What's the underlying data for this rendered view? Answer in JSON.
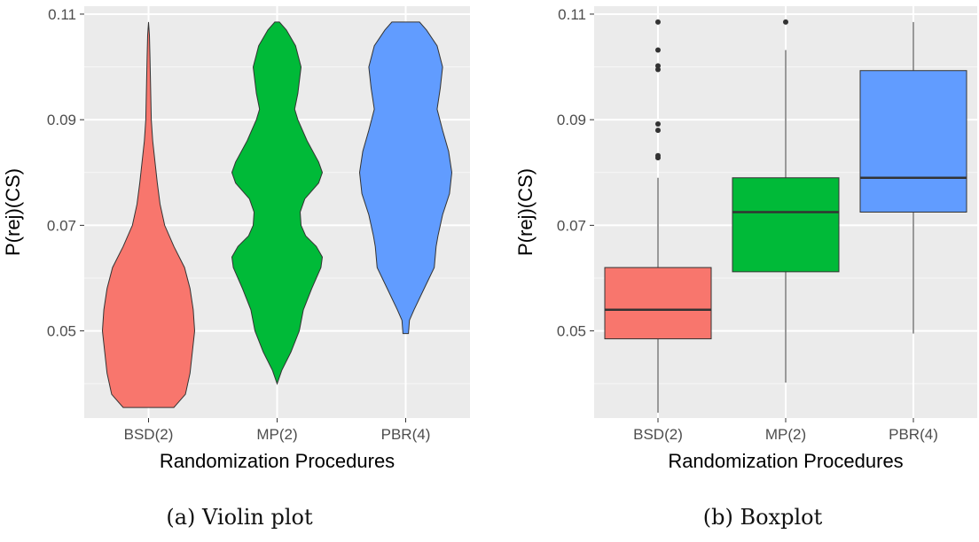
{
  "figures": [
    {
      "caption": "(a) Violin plot",
      "chart_data": {
        "type": "violin",
        "xlabel": "Randomization Procedures",
        "ylabel": "P(rej)(CS)",
        "ylim": [
          0.0335,
          0.1115
        ],
        "y_ticks": [
          "0.05",
          "0.07",
          "0.09",
          "0.11"
        ],
        "y_tick_values": [
          0.05,
          0.07,
          0.09,
          0.11
        ],
        "grid": true,
        "categories": [
          "BSD(2)",
          "MP(2)",
          "PBR(4)"
        ],
        "series": [
          {
            "category": "BSD(2)",
            "color": "#F8766D",
            "density": [
              [
                0.0355,
                0.55
              ],
              [
                0.038,
                0.8
              ],
              [
                0.042,
                0.9
              ],
              [
                0.046,
                0.95
              ],
              [
                0.05,
                1.0
              ],
              [
                0.054,
                0.97
              ],
              [
                0.058,
                0.9
              ],
              [
                0.062,
                0.78
              ],
              [
                0.066,
                0.55
              ],
              [
                0.07,
                0.35
              ],
              [
                0.074,
                0.25
              ],
              [
                0.078,
                0.19
              ],
              [
                0.082,
                0.14
              ],
              [
                0.086,
                0.09
              ],
              [
                0.09,
                0.06
              ],
              [
                0.094,
                0.05
              ],
              [
                0.098,
                0.04
              ],
              [
                0.102,
                0.03
              ],
              [
                0.106,
                0.02
              ],
              [
                0.1085,
                0.0
              ]
            ]
          },
          {
            "category": "MP(2)",
            "color": "#00BA38",
            "density": [
              [
                0.04,
                0.0
              ],
              [
                0.0425,
                0.1
              ],
              [
                0.046,
                0.3
              ],
              [
                0.05,
                0.48
              ],
              [
                0.054,
                0.57
              ],
              [
                0.058,
                0.75
              ],
              [
                0.062,
                0.95
              ],
              [
                0.064,
                0.98
              ],
              [
                0.066,
                0.85
              ],
              [
                0.068,
                0.62
              ],
              [
                0.07,
                0.52
              ],
              [
                0.0725,
                0.5
              ],
              [
                0.075,
                0.6
              ],
              [
                0.078,
                0.9
              ],
              [
                0.08,
                0.98
              ],
              [
                0.082,
                0.9
              ],
              [
                0.086,
                0.65
              ],
              [
                0.09,
                0.45
              ],
              [
                0.092,
                0.38
              ],
              [
                0.095,
                0.45
              ],
              [
                0.1,
                0.52
              ],
              [
                0.104,
                0.4
              ],
              [
                0.107,
                0.2
              ],
              [
                0.1085,
                0.05
              ]
            ]
          },
          {
            "category": "PBR(4)",
            "color": "#619CFF",
            "density": [
              [
                0.0495,
                0.06
              ],
              [
                0.052,
                0.08
              ],
              [
                0.054,
                0.18
              ],
              [
                0.058,
                0.4
              ],
              [
                0.062,
                0.62
              ],
              [
                0.066,
                0.66
              ],
              [
                0.068,
                0.7
              ],
              [
                0.072,
                0.8
              ],
              [
                0.076,
                0.95
              ],
              [
                0.08,
                1.0
              ],
              [
                0.084,
                0.93
              ],
              [
                0.088,
                0.8
              ],
              [
                0.092,
                0.68
              ],
              [
                0.096,
                0.75
              ],
              [
                0.1,
                0.8
              ],
              [
                0.104,
                0.68
              ],
              [
                0.107,
                0.45
              ],
              [
                0.1085,
                0.3
              ]
            ]
          }
        ]
      }
    },
    {
      "caption": "(b) Boxplot",
      "chart_data": {
        "type": "box",
        "xlabel": "Randomization Procedures",
        "ylabel": "P(rej)(CS)",
        "ylim": [
          0.0335,
          0.1115
        ],
        "y_ticks": [
          "0.05",
          "0.07",
          "0.09",
          "0.11"
        ],
        "y_tick_values": [
          0.05,
          0.07,
          0.09,
          0.11
        ],
        "grid": true,
        "categories": [
          "BSD(2)",
          "MP(2)",
          "PBR(4)"
        ],
        "series": [
          {
            "category": "BSD(2)",
            "color": "#F8766D",
            "min": 0.0345,
            "q1": 0.0485,
            "median": 0.054,
            "q3": 0.062,
            "max": 0.079,
            "outliers": [
              0.0828,
              0.0832,
              0.088,
              0.0892,
              0.0995,
              0.1002,
              0.1032,
              0.1085
            ]
          },
          {
            "category": "MP(2)",
            "color": "#00BA38",
            "min": 0.0402,
            "q1": 0.0612,
            "median": 0.0725,
            "q3": 0.079,
            "max": 0.1032,
            "outliers": [
              0.1085
            ]
          },
          {
            "category": "PBR(4)",
            "color": "#619CFF",
            "min": 0.0495,
            "q1": 0.0725,
            "median": 0.079,
            "q3": 0.0993,
            "max": 0.1085,
            "outliers": []
          }
        ]
      }
    }
  ]
}
